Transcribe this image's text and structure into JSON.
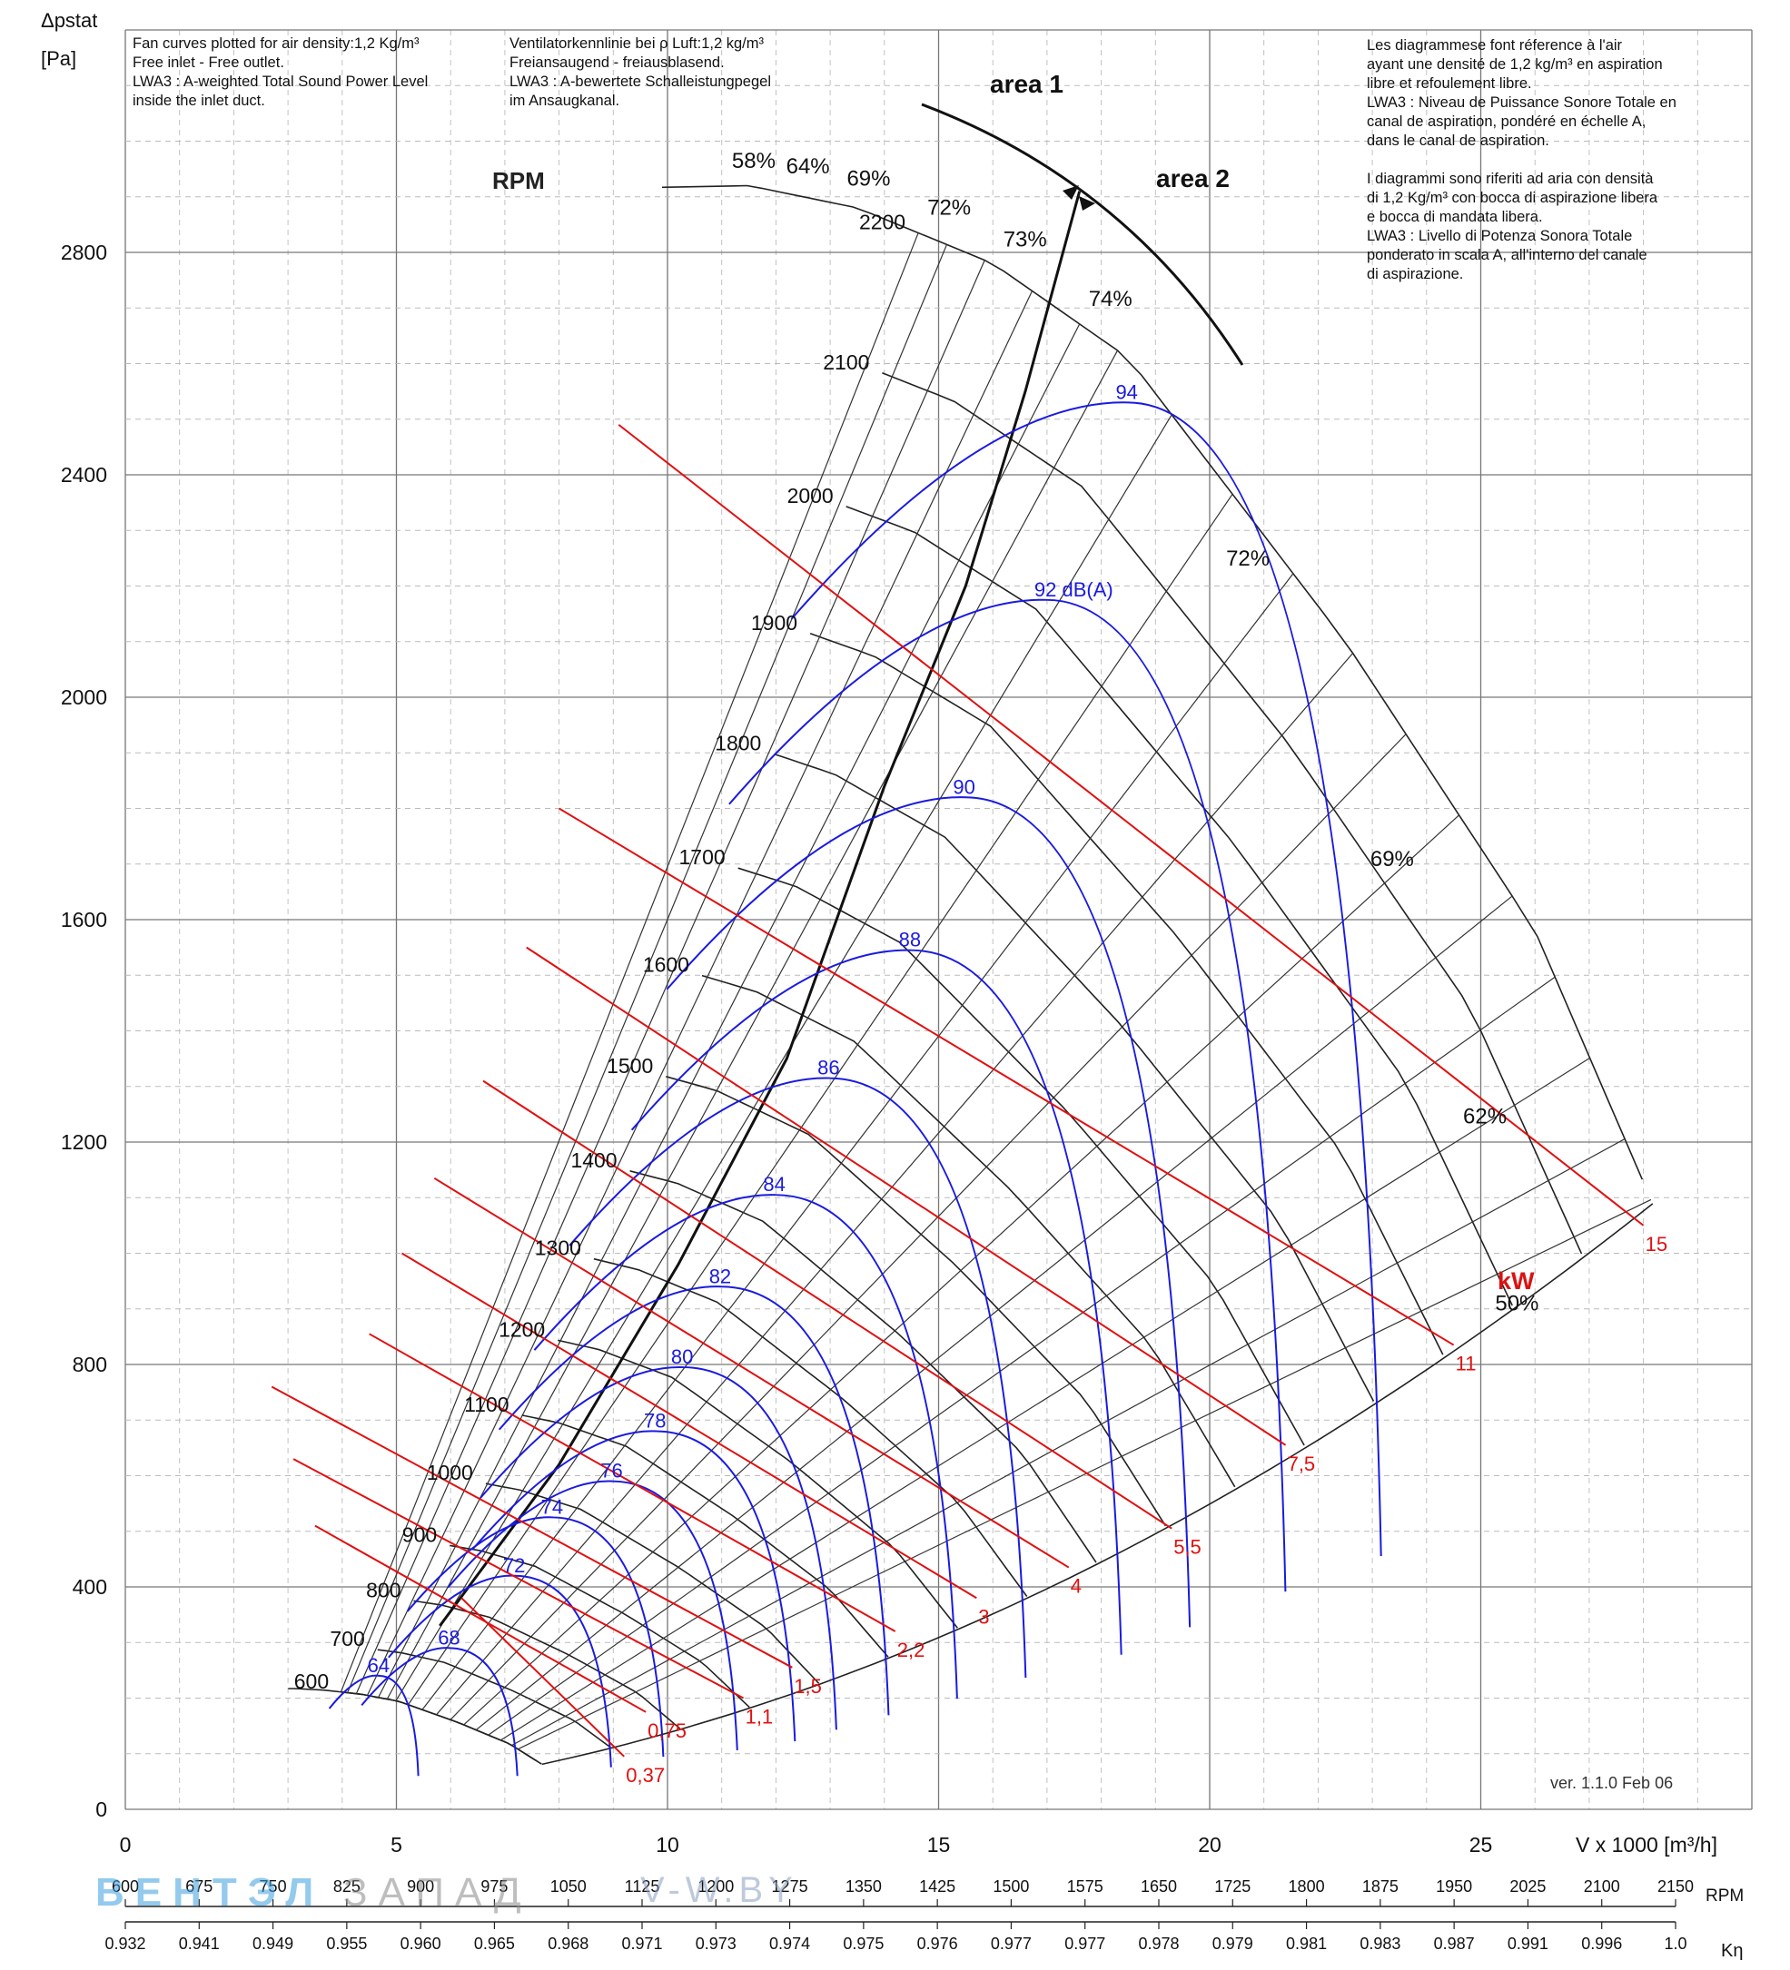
{
  "notes": {
    "en": "Fan curves plotted for air density:1,2 Kg/m³\nFree inlet - Free outlet.\nLWA3 : A-weighted Total Sound Power Level\ninside the inlet duct.",
    "de": "Ventilatorkennlinie bei ρ Luft:1,2 kg/m³\nFreiansaugend - freiausblasend.\nLWA3 : A-bewertete Schalleistungpegel\nim Ansaugkanal.",
    "fr_it": "Les diagrammese font réference à l'air\nayant une densité de 1,2 kg/m³ en aspiration\nlibre et refoulement libre.\nLWA3 : Niveau de Puissance Sonore Totale en\ncanal de aspiration, pondéré en échelle A,\ndans le canal de aspiration.\n\nI diagrammi sono riferiti ad aria con densità\ndi 1,2 Kg/m³ con bocca di aspirazione libera\ne bocca di mandata libera.\nLWA3 : Livello di Potenza Sonora Totale\nponderato in scala A, all'interno del canale\ndi aspirazione."
  },
  "watermark": {
    "left": "ВЕНТЭЛ",
    "right": "ЗАПАД",
    "url": "V-W.BY"
  },
  "chart_data": {
    "type": "line",
    "y_label_top": "Δpstat",
    "y_label_unit": "[Pa]",
    "x_label": "V x 1000 [m³/h]",
    "xlim": [
      0,
      30
    ],
    "ylim": [
      0,
      3200
    ],
    "x_ticks": [
      0,
      5,
      10,
      15,
      20,
      25
    ],
    "y_ticks": [
      0,
      400,
      800,
      1200,
      1600,
      2000,
      2400,
      2800
    ],
    "grid": true,
    "rpm_label": "RPM",
    "speeds": [
      600,
      700,
      800,
      900,
      1000,
      1100,
      1200,
      1300,
      1400,
      1500,
      1600,
      1700,
      1800,
      1900,
      2000,
      2100,
      2200
    ],
    "speed_curve_apex": {
      "rpm": 2200,
      "q": [
        9.9,
        11.5,
        13.5,
        16.0,
        18.5,
        22.5,
        26.0,
        28.3
      ],
      "p": [
        2917,
        2920,
        2880,
        2780,
        2610,
        2100,
        1580,
        1060
      ]
    },
    "efficiency_labels": [
      "58%",
      "64%",
      "69%",
      "72%",
      "73%",
      "74%",
      "72%",
      "69%",
      "62%",
      "50%"
    ],
    "area_labels": [
      "area 1",
      "area 2"
    ],
    "area_divider": {
      "q": [
        5.8,
        8.0,
        10.2,
        12.2,
        14.0,
        15.5,
        16.6,
        17.6
      ],
      "p": [
        330,
        620,
        980,
        1350,
        1840,
        2200,
        2550,
        2910
      ]
    },
    "sound_unit": "dB(A)",
    "sound_power": [
      {
        "value": 64,
        "label": "64",
        "apex": [
          4.7,
          240
        ]
      },
      {
        "value": 68,
        "label": "68",
        "apex": [
          6.0,
          290
        ]
      },
      {
        "value": 72,
        "label": "72",
        "apex": [
          7.2,
          420
        ]
      },
      {
        "value": 74,
        "label": "74",
        "apex": [
          7.9,
          525
        ]
      },
      {
        "value": 76,
        "label": "76",
        "apex": [
          9.0,
          590
        ]
      },
      {
        "value": 78,
        "label": "78",
        "apex": [
          9.8,
          680
        ]
      },
      {
        "value": 80,
        "label": "80",
        "apex": [
          10.3,
          795
        ]
      },
      {
        "value": 82,
        "label": "82",
        "apex": [
          11.0,
          940
        ]
      },
      {
        "value": 84,
        "label": "84",
        "apex": [
          12.0,
          1105
        ]
      },
      {
        "value": 86,
        "label": "86",
        "apex": [
          13.0,
          1315
        ]
      },
      {
        "value": 88,
        "label": "88",
        "apex": [
          14.5,
          1545
        ]
      },
      {
        "value": 90,
        "label": "90",
        "apex": [
          15.5,
          1820
        ]
      },
      {
        "value": 92,
        "label": "92 dB(A)",
        "apex": [
          17.0,
          2175
        ]
      },
      {
        "value": 94,
        "label": "94",
        "apex": [
          18.5,
          2530
        ]
      }
    ],
    "power_unit": "kW",
    "power_lines": [
      {
        "kw": "0,37",
        "q": [
          6.2,
          9.2
        ],
        "p": [
          380,
          95
        ]
      },
      {
        "kw": "0,75",
        "q": [
          3.5,
          9.6
        ],
        "p": [
          510,
          175
        ]
      },
      {
        "kw": "1,1",
        "q": [
          3.1,
          11.4
        ],
        "p": [
          630,
          200
        ]
      },
      {
        "kw": "1,5",
        "q": [
          2.7,
          12.3
        ],
        "p": [
          760,
          255
        ]
      },
      {
        "kw": "2,2",
        "q": [
          4.5,
          14.2
        ],
        "p": [
          855,
          320
        ]
      },
      {
        "kw": "3",
        "q": [
          5.1,
          15.7
        ],
        "p": [
          1000,
          380
        ]
      },
      {
        "kw": "4",
        "q": [
          5.7,
          17.4
        ],
        "p": [
          1135,
          435
        ]
      },
      {
        "kw": "5,5",
        "q": [
          6.6,
          19.3
        ],
        "p": [
          1310,
          505
        ]
      },
      {
        "kw": "7,5",
        "q": [
          7.4,
          21.4
        ],
        "p": [
          1550,
          655
        ]
      },
      {
        "kw": "11",
        "q": [
          8.0,
          24.5
        ],
        "p": [
          1800,
          835
        ]
      },
      {
        "kw": "15",
        "q": [
          9.1,
          28.0
        ],
        "p": [
          2490,
          1050
        ]
      }
    ],
    "rpm_scale": [
      "600",
      "675",
      "750",
      "825",
      "900",
      "975",
      "1050",
      "1125",
      "1200",
      "1275",
      "1350",
      "1425",
      "1500",
      "1575",
      "1650",
      "1725",
      "1800",
      "1875",
      "1950",
      "2025",
      "2100",
      "2150"
    ],
    "keta_label": "Kη",
    "keta_scale": [
      "0.932",
      "0.941",
      "0.949",
      "0.955",
      "0.960",
      "0.965",
      "0.968",
      "0.971",
      "0.973",
      "0.974",
      "0.975",
      "0.976",
      "0.977",
      "0.977",
      "0.978",
      "0.979",
      "0.981",
      "0.983",
      "0.987",
      "0.991",
      "0.996",
      "1.0"
    ],
    "version": "ver. 1.1.0 Feb 06"
  }
}
